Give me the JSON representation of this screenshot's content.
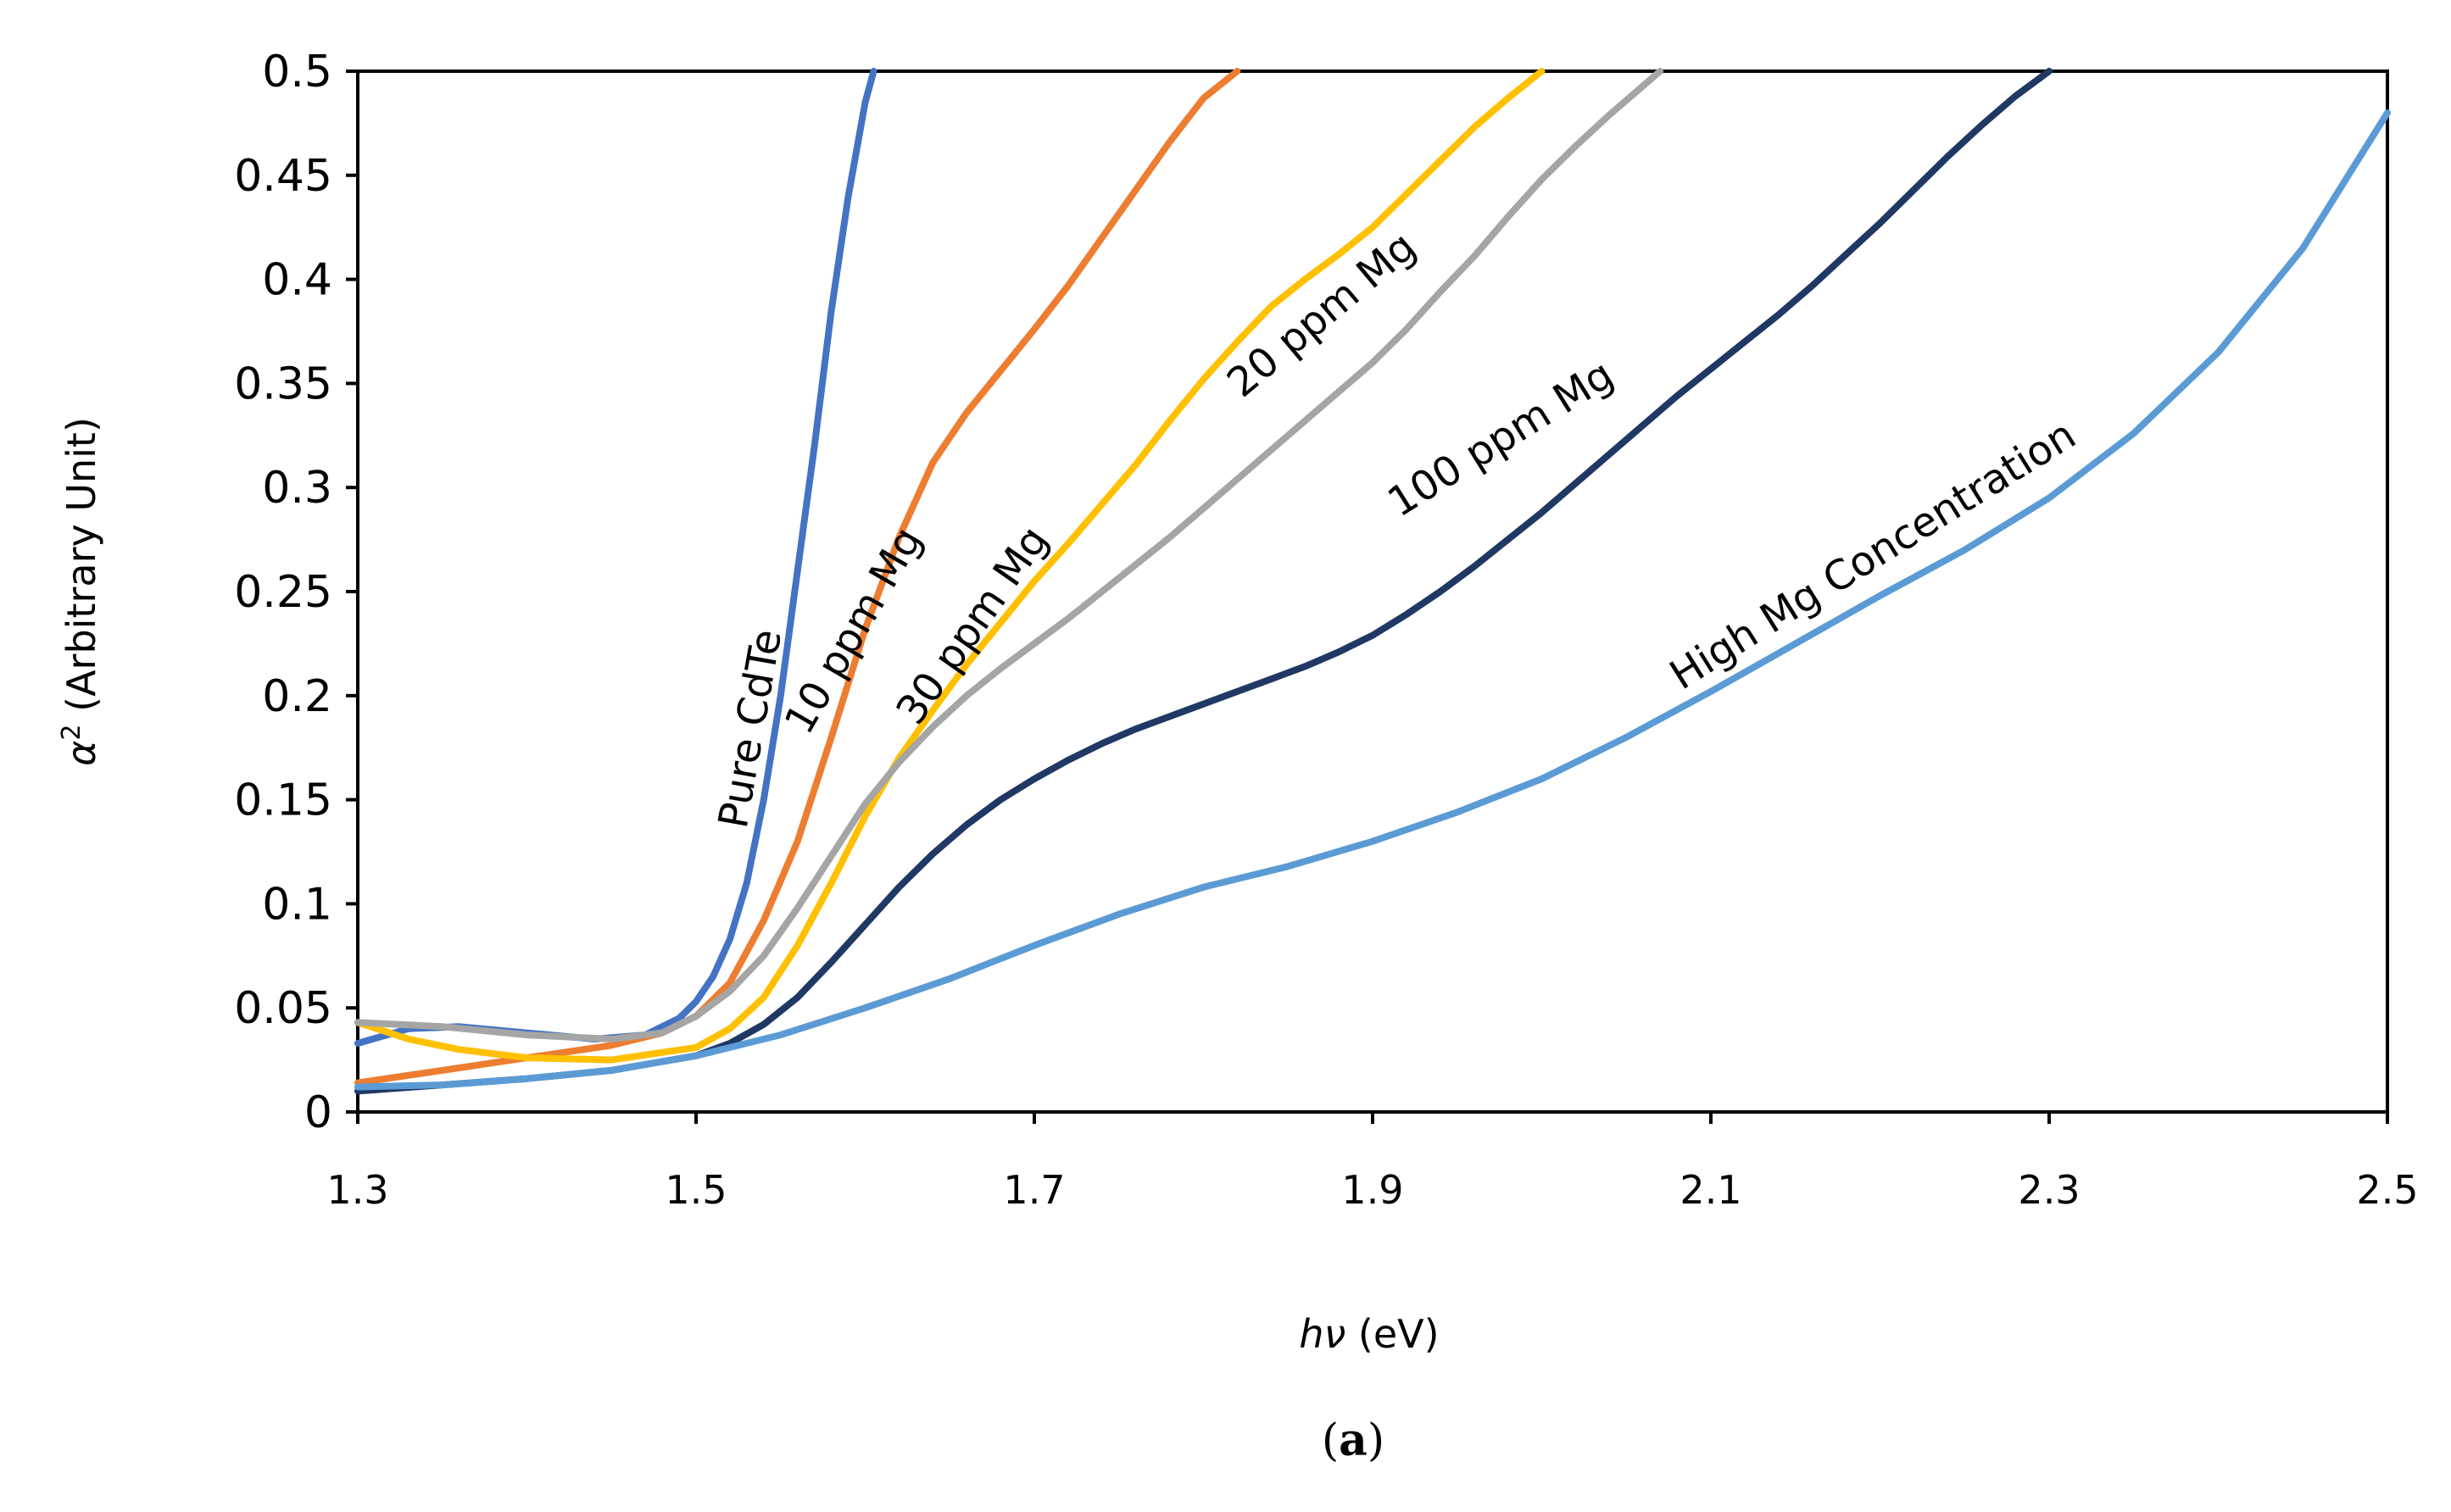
{
  "chart_data": {
    "type": "line",
    "caption_open": "(",
    "caption_letter": "a",
    "caption_close": ")",
    "xlabel_italic": "hν",
    "xlabel_unit": " (eV)",
    "ylabel_symbol": "α",
    "ylabel_sup": "2",
    "ylabel_rest": " (Arbitrary Unit)",
    "xlim": [
      1.3,
      2.5
    ],
    "ylim": [
      0,
      0.5
    ],
    "x_ticks": [
      "1.3",
      "1.5",
      "1.7",
      "1.9",
      "2.1",
      "2.3",
      "2.5"
    ],
    "y_ticks": [
      "0",
      "0.05",
      "0.1",
      "0.15",
      "0.2",
      "0.25",
      "0.3",
      "0.35",
      "0.4",
      "0.45",
      "0.5"
    ],
    "grid": false,
    "series": [
      {
        "name": "Pure CdTe",
        "color": "#4472C4",
        "label_at": [
          1.54,
          0.183
        ],
        "label_angle": -80,
        "points": [
          [
            1.3,
            0.033
          ],
          [
            1.33,
            0.04
          ],
          [
            1.36,
            0.041
          ],
          [
            1.4,
            0.038
          ],
          [
            1.44,
            0.035
          ],
          [
            1.47,
            0.037
          ],
          [
            1.49,
            0.045
          ],
          [
            1.5,
            0.053
          ],
          [
            1.51,
            0.065
          ],
          [
            1.52,
            0.083
          ],
          [
            1.53,
            0.11
          ],
          [
            1.54,
            0.15
          ],
          [
            1.55,
            0.2
          ],
          [
            1.56,
            0.26
          ],
          [
            1.57,
            0.32
          ],
          [
            1.58,
            0.385
          ],
          [
            1.59,
            0.44
          ],
          [
            1.6,
            0.485
          ],
          [
            1.605,
            0.5
          ]
        ]
      },
      {
        "name": "10 ppm Mg",
        "color": "#ED7D31",
        "label_at": [
          1.6,
          0.228
        ],
        "label_angle": -60,
        "points": [
          [
            1.3,
            0.014
          ],
          [
            1.35,
            0.02
          ],
          [
            1.4,
            0.026
          ],
          [
            1.45,
            0.032
          ],
          [
            1.48,
            0.038
          ],
          [
            1.5,
            0.046
          ],
          [
            1.52,
            0.062
          ],
          [
            1.54,
            0.092
          ],
          [
            1.56,
            0.13
          ],
          [
            1.58,
            0.18
          ],
          [
            1.6,
            0.232
          ],
          [
            1.62,
            0.276
          ],
          [
            1.64,
            0.312
          ],
          [
            1.66,
            0.336
          ],
          [
            1.68,
            0.356
          ],
          [
            1.7,
            0.376
          ],
          [
            1.72,
            0.397
          ],
          [
            1.74,
            0.42
          ],
          [
            1.76,
            0.443
          ],
          [
            1.78,
            0.466
          ],
          [
            1.8,
            0.487
          ],
          [
            1.82,
            0.5
          ]
        ]
      },
      {
        "name": "30 ppm Mg",
        "color": "#FFC000",
        "label_at": [
          1.67,
          0.23
        ],
        "label_angle": -55,
        "points": [
          [
            1.3,
            0.043
          ],
          [
            1.33,
            0.035
          ],
          [
            1.36,
            0.03
          ],
          [
            1.4,
            0.026
          ],
          [
            1.45,
            0.025
          ],
          [
            1.5,
            0.031
          ],
          [
            1.52,
            0.04
          ],
          [
            1.54,
            0.055
          ],
          [
            1.56,
            0.08
          ],
          [
            1.58,
            0.11
          ],
          [
            1.6,
            0.142
          ],
          [
            1.62,
            0.17
          ],
          [
            1.64,
            0.193
          ],
          [
            1.66,
            0.215
          ],
          [
            1.68,
            0.235
          ],
          [
            1.7,
            0.255
          ],
          [
            1.72,
            0.273
          ],
          [
            1.74,
            0.292
          ],
          [
            1.76,
            0.311
          ],
          [
            1.78,
            0.332
          ],
          [
            1.8,
            0.352
          ],
          [
            1.82,
            0.37
          ],
          [
            1.84,
            0.387
          ],
          [
            1.86,
            0.4
          ],
          [
            1.88,
            0.412
          ],
          [
            1.9,
            0.425
          ],
          [
            1.92,
            0.441
          ],
          [
            1.94,
            0.457
          ],
          [
            1.96,
            0.473
          ],
          [
            1.98,
            0.487
          ],
          [
            2.0,
            0.5
          ]
        ]
      },
      {
        "name": "20 ppm Mg",
        "color": "#A5A5A5",
        "label_at": [
          1.875,
          0.378
        ],
        "label_angle": -40,
        "points": [
          [
            1.3,
            0.043
          ],
          [
            1.35,
            0.041
          ],
          [
            1.4,
            0.037
          ],
          [
            1.45,
            0.035
          ],
          [
            1.48,
            0.038
          ],
          [
            1.5,
            0.046
          ],
          [
            1.52,
            0.058
          ],
          [
            1.54,
            0.075
          ],
          [
            1.56,
            0.098
          ],
          [
            1.58,
            0.123
          ],
          [
            1.6,
            0.148
          ],
          [
            1.62,
            0.168
          ],
          [
            1.64,
            0.185
          ],
          [
            1.66,
            0.2
          ],
          [
            1.68,
            0.213
          ],
          [
            1.7,
            0.225
          ],
          [
            1.72,
            0.237
          ],
          [
            1.74,
            0.25
          ],
          [
            1.76,
            0.263
          ],
          [
            1.78,
            0.276
          ],
          [
            1.8,
            0.29
          ],
          [
            1.82,
            0.304
          ],
          [
            1.84,
            0.318
          ],
          [
            1.86,
            0.332
          ],
          [
            1.88,
            0.346
          ],
          [
            1.9,
            0.36
          ],
          [
            1.92,
            0.376
          ],
          [
            1.94,
            0.394
          ],
          [
            1.96,
            0.411
          ],
          [
            1.98,
            0.43
          ],
          [
            2.0,
            0.448
          ],
          [
            2.02,
            0.464
          ],
          [
            2.04,
            0.479
          ],
          [
            2.06,
            0.493
          ],
          [
            2.07,
            0.5
          ]
        ]
      },
      {
        "name": "100 ppm Mg",
        "color": "#1F3864",
        "label_at": [
          1.98,
          0.318
        ],
        "label_angle": -32,
        "points": [
          [
            1.3,
            0.01
          ],
          [
            1.35,
            0.013
          ],
          [
            1.4,
            0.016
          ],
          [
            1.45,
            0.02
          ],
          [
            1.5,
            0.027
          ],
          [
            1.52,
            0.033
          ],
          [
            1.54,
            0.042
          ],
          [
            1.56,
            0.055
          ],
          [
            1.58,
            0.072
          ],
          [
            1.6,
            0.09
          ],
          [
            1.62,
            0.108
          ],
          [
            1.64,
            0.124
          ],
          [
            1.66,
            0.138
          ],
          [
            1.68,
            0.15
          ],
          [
            1.7,
            0.16
          ],
          [
            1.72,
            0.169
          ],
          [
            1.74,
            0.177
          ],
          [
            1.76,
            0.184
          ],
          [
            1.78,
            0.19
          ],
          [
            1.8,
            0.196
          ],
          [
            1.82,
            0.202
          ],
          [
            1.84,
            0.208
          ],
          [
            1.86,
            0.214
          ],
          [
            1.88,
            0.221
          ],
          [
            1.9,
            0.229
          ],
          [
            1.92,
            0.239
          ],
          [
            1.94,
            0.25
          ],
          [
            1.96,
            0.262
          ],
          [
            1.98,
            0.275
          ],
          [
            2.0,
            0.288
          ],
          [
            2.02,
            0.302
          ],
          [
            2.04,
            0.316
          ],
          [
            2.06,
            0.33
          ],
          [
            2.08,
            0.344
          ],
          [
            2.1,
            0.357
          ],
          [
            2.12,
            0.37
          ],
          [
            2.14,
            0.383
          ],
          [
            2.16,
            0.397
          ],
          [
            2.18,
            0.412
          ],
          [
            2.2,
            0.427
          ],
          [
            2.22,
            0.443
          ],
          [
            2.24,
            0.459
          ],
          [
            2.26,
            0.474
          ],
          [
            2.28,
            0.488
          ],
          [
            2.3,
            0.5
          ]
        ]
      },
      {
        "name": "High Mg Concentration",
        "color": "#5B9BD5",
        "label_at": [
          2.2,
          0.262
        ],
        "label_angle": -32,
        "points": [
          [
            1.3,
            0.012
          ],
          [
            1.35,
            0.013
          ],
          [
            1.4,
            0.016
          ],
          [
            1.45,
            0.02
          ],
          [
            1.5,
            0.027
          ],
          [
            1.55,
            0.037
          ],
          [
            1.6,
            0.05
          ],
          [
            1.65,
            0.064
          ],
          [
            1.7,
            0.08
          ],
          [
            1.75,
            0.095
          ],
          [
            1.8,
            0.108
          ],
          [
            1.85,
            0.118
          ],
          [
            1.9,
            0.13
          ],
          [
            1.95,
            0.144
          ],
          [
            2.0,
            0.16
          ],
          [
            2.05,
            0.18
          ],
          [
            2.1,
            0.202
          ],
          [
            2.15,
            0.225
          ],
          [
            2.2,
            0.248
          ],
          [
            2.25,
            0.27
          ],
          [
            2.3,
            0.295
          ],
          [
            2.35,
            0.326
          ],
          [
            2.4,
            0.365
          ],
          [
            2.45,
            0.415
          ],
          [
            2.5,
            0.48
          ]
        ]
      }
    ]
  }
}
